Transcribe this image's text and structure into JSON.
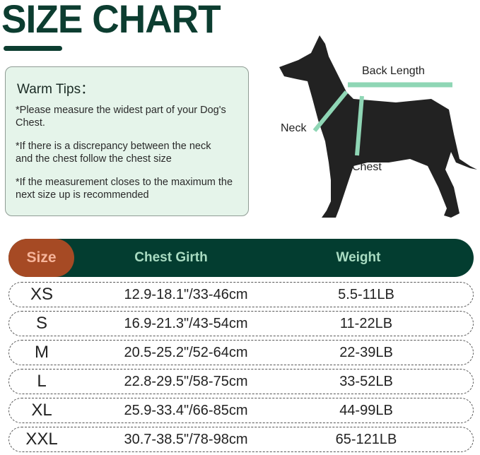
{
  "title": "SIZE CHART",
  "tips": {
    "heading": "Warm Tips：",
    "items": [
      "*Please measure the widest part of your Dog's Chest.",
      "*If there is a discrepancy between the neck and the chest follow the chest size",
      "*If the measurement closes to the maximum the next size up is recommended"
    ]
  },
  "diagram": {
    "back_length": "Back Length",
    "neck": "Neck",
    "chest": "Chest"
  },
  "table": {
    "headers": [
      "Size",
      "Chest Girth",
      "Weight"
    ],
    "rows": [
      {
        "size": "XS",
        "chest": "12.9-18.1\"/33-46cm",
        "weight": "5.5-11LB"
      },
      {
        "size": "S",
        "chest": "16.9-21.3\"/43-54cm",
        "weight": "11-22LB"
      },
      {
        "size": "M",
        "chest": "20.5-25.2\"/52-64cm",
        "weight": "22-39LB"
      },
      {
        "size": "L",
        "chest": "22.8-29.5\"/58-75cm",
        "weight": "33-52LB"
      },
      {
        "size": "XL",
        "chest": "25.9-33.4\"/66-85cm",
        "weight": "44-99LB"
      },
      {
        "size": "XXL",
        "chest": "30.7-38.5\"/78-98cm",
        "weight": "65-121LB"
      }
    ]
  },
  "colors": {
    "dark_green": "#033d30",
    "rust": "#a64a24",
    "mint": "#a9dcc2",
    "tips_bg": "#e5f4ea"
  }
}
